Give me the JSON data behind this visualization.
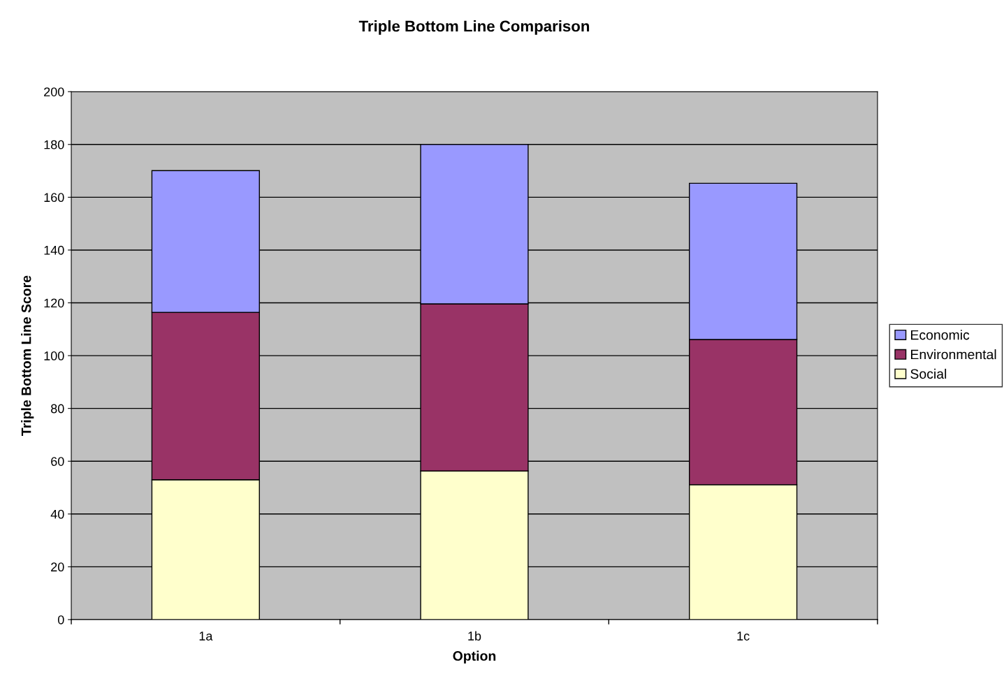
{
  "chart_data": {
    "type": "bar",
    "title": "Triple Bottom Line Comparison",
    "xlabel": "Option",
    "ylabel": "Triple Bottom Line Score",
    "categories": [
      "1a",
      "1b",
      "1c"
    ],
    "stacked": true,
    "series": [
      {
        "name": "Social",
        "color": "#ffffcc",
        "values": [
          53,
          56.3,
          51.1
        ]
      },
      {
        "name": "Environmental",
        "color": "#993366",
        "values": [
          63.4,
          63.3,
          55
        ]
      },
      {
        "name": "Economic",
        "color": "#9999ff",
        "values": [
          53.7,
          60.4,
          59.2
        ]
      }
    ],
    "ylim": [
      0,
      200
    ],
    "yticks": [
      0,
      20,
      40,
      60,
      80,
      100,
      120,
      140,
      160,
      180,
      200
    ],
    "grid": "y",
    "legend": "right"
  }
}
